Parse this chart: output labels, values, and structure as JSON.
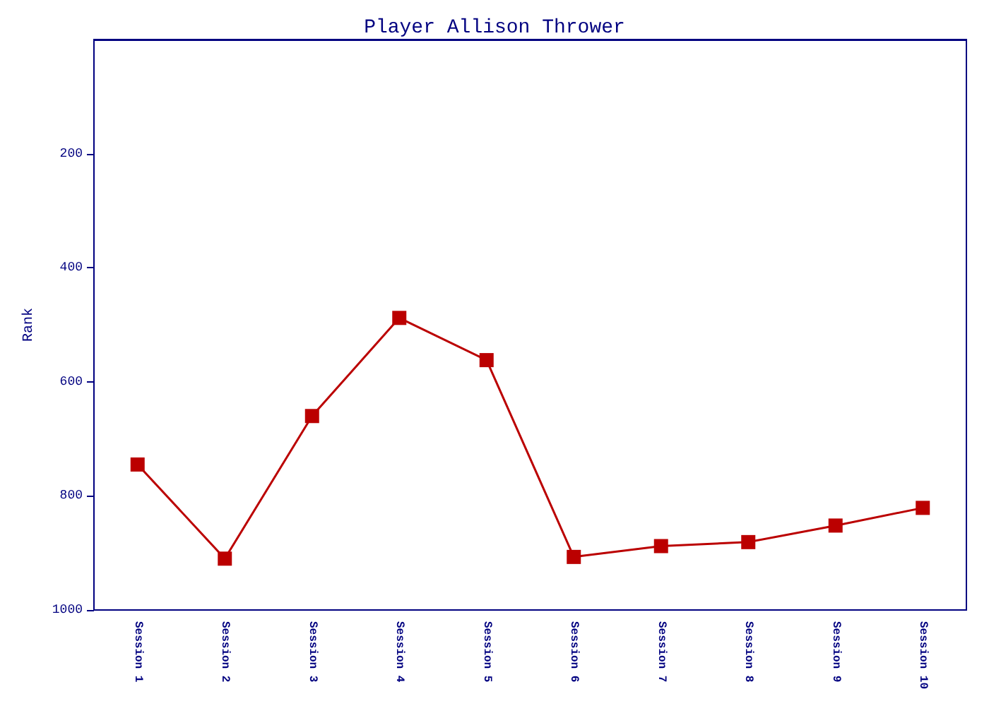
{
  "chart_data": {
    "type": "line",
    "title": "Player Allison Thrower",
    "ylabel": "Rank",
    "categories": [
      "Session 1",
      "Session 2",
      "Session 3",
      "Session 4",
      "Session 5",
      "Session 6",
      "Session 7",
      "Session 8",
      "Session 9",
      "Session 10"
    ],
    "series": [
      {
        "color": "#bb0000",
        "values": [
          745,
          910,
          660,
          488,
          562,
          907,
          888,
          881,
          852,
          821
        ]
      }
    ],
    "ylim": [
      1000,
      0
    ],
    "yticks": [
      200,
      400,
      600,
      800,
      1000
    ],
    "grid": false,
    "marker": "square",
    "line_style": "solid"
  }
}
